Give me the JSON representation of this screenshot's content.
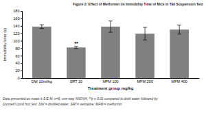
{
  "chart_data": {
    "type": "bar",
    "title": "Figure 2: Effect of Metformin on Immobility Time of Mice in Tail Suspension Test",
    "x_label": "Treatment group mg/kg",
    "y_label": "Immobility time (s)",
    "categories": [
      "DW 10ml/kg",
      "SRT 10",
      "MFM 100",
      "MFM 200",
      "MFM 400"
    ],
    "values": [
      138,
      82,
      138,
      119,
      130
    ],
    "errors": [
      5,
      3,
      15,
      17,
      12
    ],
    "color": "#808080",
    "ylim": [
      0,
      180
    ],
    "yticks": [
      0,
      20,
      40,
      60,
      80,
      100,
      120,
      140,
      160,
      180
    ],
    "annotations": [
      {
        "text": "**",
        "category": "SRT 10"
      }
    ],
    "caption": [
      "Data presented as mean ± S.E.M; n=6; one-way ANOVA; **p ≤ 0.01 compared to distil water followed by",
      "Dunnett's post hoc test. DW = distilled water; SRT= sertraline; MFM = metformin"
    ]
  }
}
